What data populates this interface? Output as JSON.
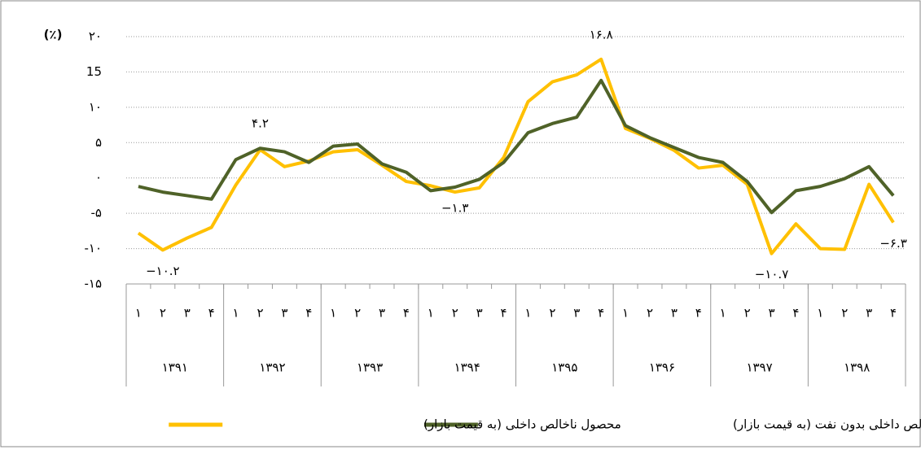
{
  "chart_data": {
    "type": "line",
    "unit_label": "(٪)",
    "categories": [
      "۱",
      "۲",
      "۳",
      "۴",
      "۱",
      "۲",
      "۳",
      "۴",
      "۱",
      "۲",
      "۳",
      "۴",
      "۱",
      "۲",
      "۳",
      "۴",
      "۱",
      "۲",
      "۳",
      "۴",
      "۱",
      "۲",
      "۳",
      "۴",
      "۱",
      "۲",
      "۳",
      "۴",
      "۱",
      "۲",
      "۳",
      "۴"
    ],
    "category_groups": [
      "۱۳۹۱",
      "۱۳۹۲",
      "۱۳۹۳",
      "۱۳۹۴",
      "۱۳۹۵",
      "۱۳۹۶",
      "۱۳۹۷",
      "۱۳۹۸"
    ],
    "ylim": [
      -15,
      20
    ],
    "yticks": [
      {
        "value": -15,
        "label": "-۱۵"
      },
      {
        "value": -10,
        "label": "-۱۰"
      },
      {
        "value": -5,
        "label": "-۵"
      },
      {
        "value": 0,
        "label": "۰"
      },
      {
        "value": 5,
        "label": "۵"
      },
      {
        "value": 10,
        "label": "۱۰"
      },
      15,
      {
        "value": 20,
        "label": "۲۰"
      }
    ],
    "grid": true,
    "series": [
      {
        "name": "محصول ناخالص داخلی (به قیمت بازار)",
        "color": "#ffc000",
        "values": [
          -7.8,
          -10.2,
          -8.5,
          -7.0,
          -1.0,
          4.0,
          1.6,
          2.4,
          3.7,
          4.0,
          1.8,
          -0.5,
          -1.1,
          -2.0,
          -1.4,
          2.9,
          10.8,
          13.6,
          14.6,
          16.8,
          7.0,
          5.6,
          3.9,
          1.4,
          1.8,
          -0.9,
          -10.7,
          -6.5,
          -10.0,
          -10.1,
          -0.9,
          -6.3
        ],
        "value_labels": [
          null,
          "−۱۰.۲",
          null,
          null,
          null,
          null,
          null,
          null,
          null,
          null,
          null,
          null,
          null,
          null,
          null,
          null,
          null,
          null,
          null,
          "۱۶.۸",
          null,
          null,
          null,
          null,
          null,
          null,
          "−۱۰.۷",
          null,
          null,
          null,
          null,
          "−۶.۳"
        ]
      },
      {
        "name": "محصول ناخالص داخلی بدون نفت (به قیمت بازار)",
        "color": "#4f6228",
        "values": [
          -1.2,
          -2.0,
          -2.5,
          -3.0,
          2.6,
          4.2,
          3.7,
          2.2,
          4.5,
          4.8,
          2.0,
          0.8,
          -1.8,
          -1.3,
          -0.2,
          2.2,
          6.4,
          7.7,
          8.6,
          13.8,
          7.4,
          5.7,
          4.3,
          2.9,
          2.2,
          -0.5,
          -4.9,
          -1.8,
          -1.2,
          -0.1,
          1.6,
          -2.5
        ],
        "value_labels": [
          null,
          null,
          null,
          null,
          null,
          "۴.۲",
          null,
          null,
          null,
          null,
          null,
          null,
          null,
          "−۱.۳",
          null,
          null,
          null,
          null,
          null,
          null,
          null,
          null,
          null,
          null,
          null,
          null,
          null,
          null,
          null,
          null,
          null,
          null
        ]
      }
    ]
  }
}
